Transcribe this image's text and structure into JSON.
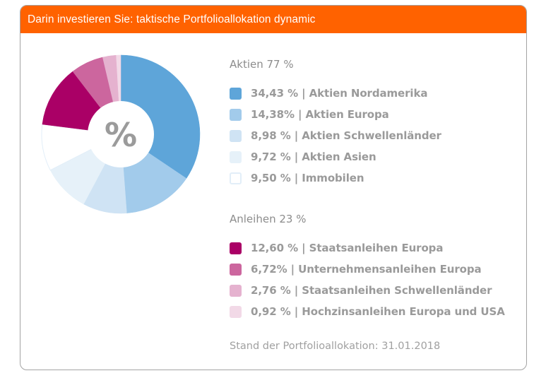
{
  "header": {
    "title": "Darin investieren Sie: taktische Portfolioallokation dynamic"
  },
  "center_icon": "percent-icon",
  "center_label": "%",
  "groups": [
    {
      "title": "Aktien 77 %"
    },
    {
      "title": "Anleihen 23 %"
    }
  ],
  "footer": {
    "note": "Stand der Portfolioallokation: 31.01.2018"
  },
  "colors": {
    "header": "#ff6200",
    "text": "#9a9a9a",
    "border": "#a3a3a3"
  },
  "chart_data": {
    "type": "pie",
    "variant": "donut",
    "title": "Darin investieren Sie: taktische Portfolioallokation dynamic",
    "start_angle": "top, clockwise",
    "legend_placement": "right",
    "center_text": "%",
    "slices": [
      {
        "label": "34,43 % | Aktien Nordamerika",
        "name": "Aktien Nordamerika",
        "value": 34.43,
        "group": "Aktien",
        "color": "#5ea5d9",
        "border": null
      },
      {
        "label": "14,38% | Aktien Europa",
        "name": "Aktien Europa",
        "value": 14.38,
        "group": "Aktien",
        "color": "#a2cbeb",
        "border": null
      },
      {
        "label": "8,98 % | Aktien Schwellenländer",
        "name": "Aktien Schwellenländer",
        "value": 8.98,
        "group": "Aktien",
        "color": "#cfe3f4",
        "border": null
      },
      {
        "label": "9,72 % | Aktien Asien",
        "name": "Aktien Asien",
        "value": 9.72,
        "group": "Aktien",
        "color": "#e6f1f9",
        "border": null
      },
      {
        "label": "9,50 % | Immobilen",
        "name": "Immobilen",
        "value": 9.5,
        "group": "Aktien",
        "color": "#ffffff",
        "border": "#e2eef8"
      },
      {
        "label": "12,60 % | Staatsanleihen Europa",
        "name": "Staatsanleihen Europa",
        "value": 12.6,
        "group": "Anleihen",
        "color": "#aa0066",
        "border": null
      },
      {
        "label": "6,72% | Unternehmensanleihen Europa",
        "name": "Unternehmensanleihen Europa",
        "value": 6.72,
        "group": "Anleihen",
        "color": "#cc669e",
        "border": null
      },
      {
        "label": "2,76 % | Staatsanleihen Schwellenländer",
        "name": "Staatsanleihen Schwellenländer",
        "value": 2.76,
        "group": "Anleihen",
        "color": "#e5b2cf",
        "border": null
      },
      {
        "label": "0,92 % | Hochzinsanleihen Europa und USA",
        "name": "Hochzinsanleihen Europa und USA",
        "value": 0.92,
        "group": "Anleihen",
        "color": "#f2d9e7",
        "border": null
      }
    ]
  }
}
